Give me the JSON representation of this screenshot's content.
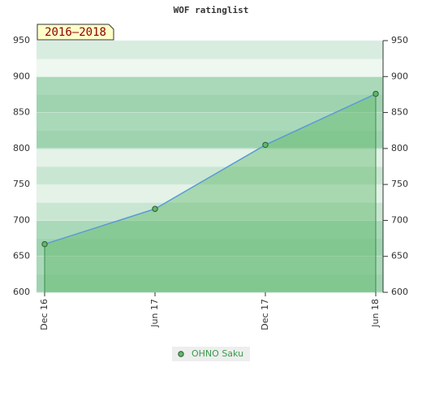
{
  "chart_data": {
    "type": "area",
    "title": "WOF ratinglist",
    "annotation": "2016–2018",
    "categories": [
      "Dec 16",
      "Jun 17",
      "Dec 17",
      "Jun 18"
    ],
    "series": [
      {
        "name": "OHNO Saku",
        "color": "#5fb86a",
        "line_color": "#5b9bd5",
        "values": [
          667,
          716,
          805,
          876
        ]
      }
    ],
    "ylim": [
      600,
      950
    ],
    "yticks": [
      600,
      650,
      700,
      750,
      800,
      850,
      900,
      950
    ],
    "grid": true,
    "legend": "bottom"
  }
}
